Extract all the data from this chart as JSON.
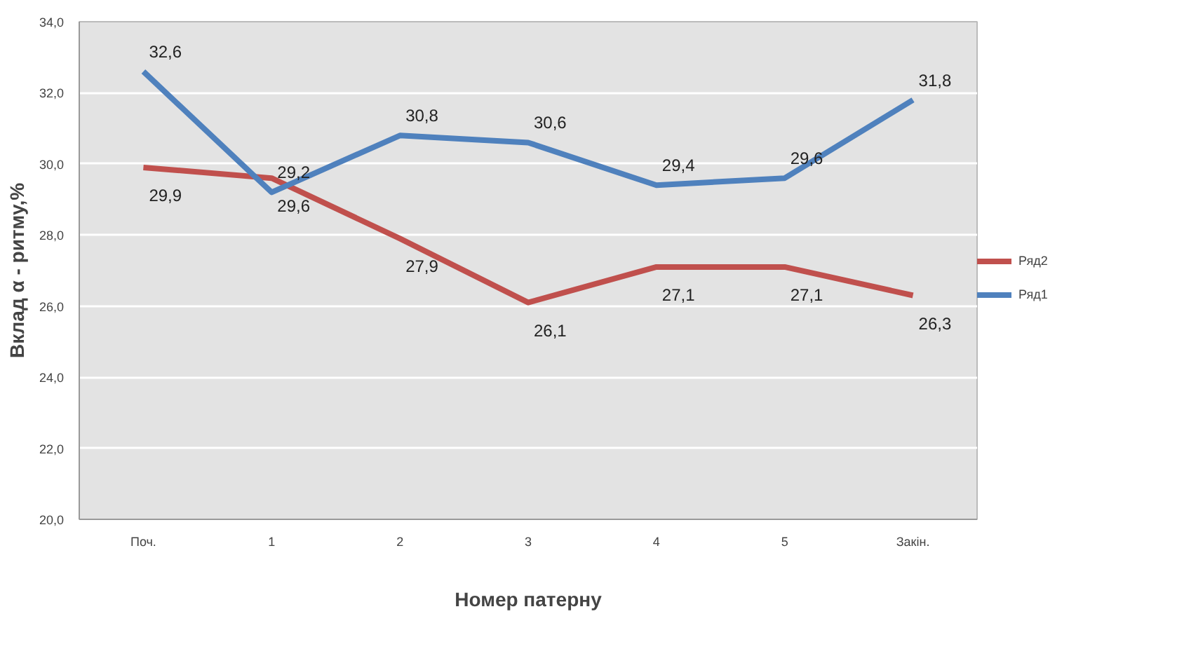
{
  "chart_data": {
    "type": "line",
    "xlabel": "Номер патерну",
    "ylabel": "Вклад α - ритму,%",
    "categories": [
      "Поч.",
      "1",
      "2",
      "3",
      "4",
      "5",
      "Закін."
    ],
    "series": [
      {
        "name": "Ряд2",
        "color": "#c0504d",
        "values": [
          29.9,
          29.6,
          27.9,
          26.1,
          27.1,
          27.1,
          26.3
        ],
        "value_labels": [
          "29,9",
          "29,6",
          "27,9",
          "26,1",
          "27,1",
          "27,1",
          "26,3"
        ]
      },
      {
        "name": "Ряд1",
        "color": "#4f81bd",
        "values": [
          32.6,
          29.2,
          30.8,
          30.6,
          29.4,
          29.6,
          31.8
        ],
        "value_labels": [
          "32,6",
          "29,2",
          "30,8",
          "30,6",
          "29,4",
          "29,6",
          "31,8"
        ]
      }
    ],
    "ylim": [
      20,
      34
    ],
    "yticks": [
      {
        "value": 20,
        "label": "20,0"
      },
      {
        "value": 22,
        "label": "22,0"
      },
      {
        "value": 24,
        "label": "24,0"
      },
      {
        "value": 26,
        "label": "26,0"
      },
      {
        "value": 28,
        "label": "28,0"
      },
      {
        "value": 30,
        "label": "30,0"
      },
      {
        "value": 32,
        "label": "32,0"
      },
      {
        "value": 34,
        "label": "34,0"
      }
    ],
    "grid": "y",
    "legend": "right",
    "marker": "none",
    "line_style": "solid"
  }
}
